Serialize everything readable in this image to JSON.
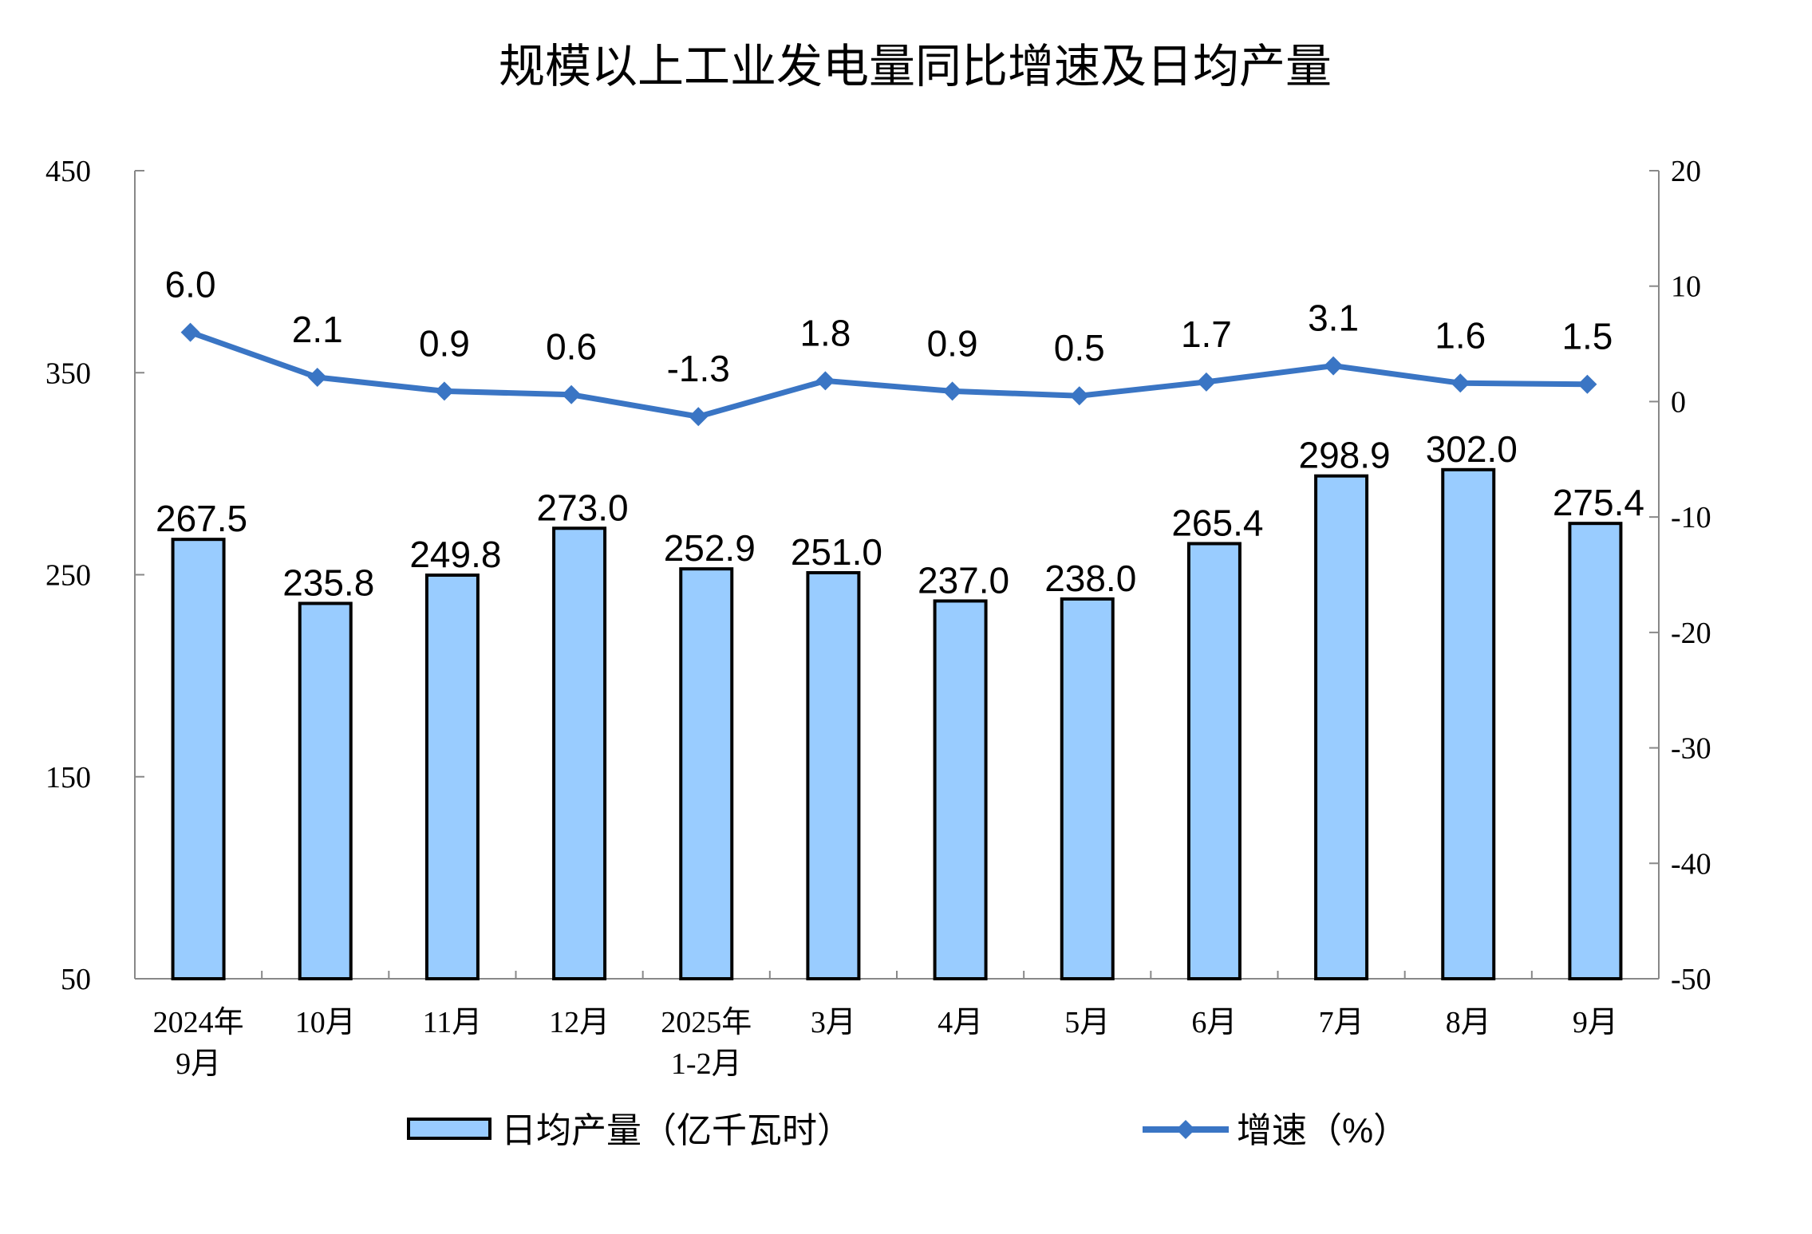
{
  "chart_data": {
    "type": "bar+line",
    "title": "规模以上工业发电量同比增速及日均产量",
    "categories": [
      [
        "2024年",
        "9月"
      ],
      [
        "10月"
      ],
      [
        "11月"
      ],
      [
        "12月"
      ],
      [
        "2025年",
        "1-2月"
      ],
      [
        "3月"
      ],
      [
        "4月"
      ],
      [
        "5月"
      ],
      [
        "6月"
      ],
      [
        "7月"
      ],
      [
        "8月"
      ],
      [
        "9月"
      ]
    ],
    "series": [
      {
        "name": "日均产量（亿千瓦时）",
        "type": "bar",
        "axis": "left",
        "color": "#99CCFF",
        "values": [
          267.5,
          235.8,
          249.8,
          273.0,
          252.9,
          251.0,
          237.0,
          238.0,
          265.4,
          298.9,
          302.0,
          275.4
        ],
        "labels": [
          "267.5",
          "235.8",
          "249.8",
          "273.0",
          "252.9",
          "251.0",
          "237.0",
          "238.0",
          "265.4",
          "298.9",
          "302.0",
          "275.4"
        ]
      },
      {
        "name": "增速（%）",
        "type": "line",
        "axis": "right",
        "color": "#3A75C4",
        "values": [
          6.0,
          2.1,
          0.9,
          0.6,
          -1.3,
          1.8,
          0.9,
          0.5,
          1.7,
          3.1,
          1.6,
          1.5
        ],
        "labels": [
          "6.0",
          "2.1",
          "0.9",
          "0.6",
          "-1.3",
          "1.8",
          "0.9",
          "0.5",
          "1.7",
          "3.1",
          "1.6",
          "1.5"
        ]
      }
    ],
    "left_axis": {
      "range": [
        50,
        450
      ],
      "ticks": [
        "50",
        "150",
        "250",
        "350",
        "450"
      ]
    },
    "right_axis": {
      "range": [
        -50,
        20
      ],
      "ticks": [
        "-50",
        "-40",
        "-30",
        "-20",
        "-10",
        "0",
        "10",
        "20"
      ]
    },
    "grid": false,
    "legend_placement": "bottom"
  }
}
